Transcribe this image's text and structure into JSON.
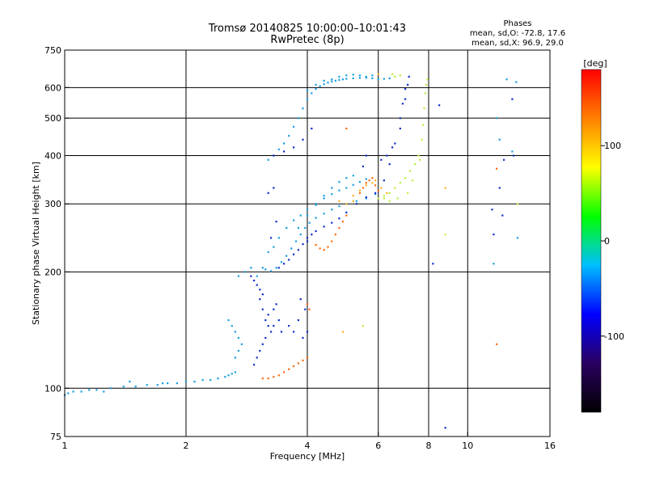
{
  "chart_data": {
    "type": "scatter",
    "title": "Tromsø 20140825 10:00:00–10:01:43",
    "subtitle": "RwPretec (8p)",
    "xlabel": "Frequency [MHz]",
    "ylabel": "Stationary phase Virtual Height [km]",
    "x_scale": "log",
    "y_scale": "log",
    "xlim": [
      1,
      16
    ],
    "ylim": [
      75,
      750
    ],
    "x_ticks": [
      1,
      2,
      4,
      6,
      8,
      10,
      16
    ],
    "y_ticks": [
      75,
      100,
      200,
      300,
      400,
      500,
      600,
      750
    ],
    "grid": true,
    "phase_box": {
      "heading": "Phases",
      "line_o": "mean, sd,O: -72.8, 17.6",
      "line_x": "mean, sd,X:  96.9, 29.0"
    },
    "colorbar": {
      "label": "[deg]",
      "range": [
        -180,
        180
      ],
      "ticks": [
        100,
        0,
        -100
      ],
      "colormap": [
        "#000000",
        "#2a0060",
        "#0000ff",
        "#00bfff",
        "#00ff00",
        "#ffff00",
        "#ff8000",
        "#ff0000"
      ]
    },
    "colors": {
      "cyan_blue": "#1a9fe0",
      "dark_blue": "#1030c8",
      "orange": "#ff6a10",
      "yellow_green": "#b8f040",
      "yellow_orange": "#ffb020"
    },
    "series": [
      {
        "color_key": "cyan_blue",
        "size": 2.2,
        "points": [
          [
            1.0,
            96
          ],
          [
            1.02,
            97
          ],
          [
            1.05,
            98
          ],
          [
            1.1,
            98
          ],
          [
            1.15,
            99
          ],
          [
            1.2,
            99
          ],
          [
            1.3,
            100
          ],
          [
            1.4,
            101
          ],
          [
            1.5,
            101
          ],
          [
            1.6,
            102
          ],
          [
            1.7,
            102
          ],
          [
            1.8,
            103
          ],
          [
            1.9,
            103
          ],
          [
            2.0,
            104
          ],
          [
            2.1,
            104
          ],
          [
            2.2,
            105
          ],
          [
            2.3,
            105
          ],
          [
            2.4,
            106
          ],
          [
            2.5,
            107
          ],
          [
            2.55,
            108
          ],
          [
            2.6,
            109
          ],
          [
            2.65,
            110
          ],
          [
            1.25,
            98
          ],
          [
            1.45,
            104
          ],
          [
            1.75,
            103
          ],
          [
            3.1,
            205
          ],
          [
            3.15,
            203
          ],
          [
            3.25,
            201
          ],
          [
            3.35,
            205
          ],
          [
            3.45,
            212
          ],
          [
            3.55,
            220
          ],
          [
            3.65,
            230
          ],
          [
            3.75,
            240
          ],
          [
            3.85,
            250
          ],
          [
            3.95,
            260
          ],
          [
            4.05,
            268
          ],
          [
            4.2,
            276
          ],
          [
            4.4,
            283
          ],
          [
            4.6,
            290
          ],
          [
            4.8,
            296
          ],
          [
            5.0,
            300
          ],
          [
            5.3,
            305
          ],
          [
            5.6,
            310
          ],
          [
            5.9,
            318
          ],
          [
            3.2,
            225
          ],
          [
            3.3,
            232
          ],
          [
            3.4,
            245
          ],
          [
            3.55,
            260
          ],
          [
            3.7,
            272
          ],
          [
            3.85,
            280
          ],
          [
            4.0,
            290
          ],
          [
            4.2,
            300
          ],
          [
            4.4,
            310
          ],
          [
            4.6,
            318
          ],
          [
            4.8,
            325
          ],
          [
            5.0,
            330
          ],
          [
            5.2,
            336
          ],
          [
            5.4,
            342
          ],
          [
            5.6,
            348
          ],
          [
            3.8,
            260
          ],
          [
            4.0,
            280
          ],
          [
            4.2,
            298
          ],
          [
            4.4,
            315
          ],
          [
            4.6,
            330
          ],
          [
            4.8,
            342
          ],
          [
            5.0,
            350
          ],
          [
            5.2,
            355
          ],
          [
            3.2,
            390
          ],
          [
            3.3,
            400
          ],
          [
            3.4,
            415
          ],
          [
            3.5,
            430
          ],
          [
            3.6,
            450
          ],
          [
            3.7,
            475
          ],
          [
            3.8,
            500
          ],
          [
            3.9,
            530
          ],
          [
            4.0,
            560
          ],
          [
            4.1,
            580
          ],
          [
            4.2,
            595
          ],
          [
            4.3,
            605
          ],
          [
            4.4,
            612
          ],
          [
            4.5,
            618
          ],
          [
            4.6,
            622
          ],
          [
            4.7,
            625
          ],
          [
            4.8,
            628
          ],
          [
            4.9,
            630
          ],
          [
            5.0,
            632
          ],
          [
            5.2,
            634
          ],
          [
            5.4,
            636
          ],
          [
            5.6,
            636
          ],
          [
            5.8,
            634
          ],
          [
            6.0,
            630
          ],
          [
            6.2,
            632
          ],
          [
            6.4,
            634
          ],
          [
            4.0,
            590
          ],
          [
            4.2,
            610
          ],
          [
            4.4,
            625
          ],
          [
            4.6,
            630
          ],
          [
            4.8,
            640
          ],
          [
            5.0,
            645
          ],
          [
            5.2,
            648
          ],
          [
            5.4,
            645
          ],
          [
            5.6,
            640
          ],
          [
            5.8,
            645
          ],
          [
            2.55,
            150
          ],
          [
            2.6,
            145
          ],
          [
            2.65,
            140
          ],
          [
            2.7,
            135
          ],
          [
            2.75,
            130
          ],
          [
            2.7,
            125
          ],
          [
            2.65,
            120
          ],
          [
            2.7,
            195
          ],
          [
            2.8,
            200
          ],
          [
            2.9,
            205
          ],
          [
            3.0,
            195
          ],
          [
            12.5,
            630
          ],
          [
            13.2,
            620
          ],
          [
            12.9,
            410
          ],
          [
            13.3,
            245
          ],
          [
            11.8,
            500
          ],
          [
            12.0,
            440
          ],
          [
            11.6,
            210
          ]
        ]
      },
      {
        "color_key": "dark_blue",
        "size": 2.2,
        "points": [
          [
            2.9,
            195
          ],
          [
            2.95,
            190
          ],
          [
            3.0,
            185
          ],
          [
            3.05,
            180
          ],
          [
            3.1,
            175
          ],
          [
            3.05,
            170
          ],
          [
            3.1,
            160
          ],
          [
            3.15,
            150
          ],
          [
            3.2,
            145
          ],
          [
            3.25,
            140
          ],
          [
            3.15,
            135
          ],
          [
            3.1,
            130
          ],
          [
            3.05,
            125
          ],
          [
            3.0,
            120
          ],
          [
            2.95,
            115
          ],
          [
            3.2,
            155
          ],
          [
            3.3,
            160
          ],
          [
            3.35,
            165
          ],
          [
            3.4,
            150
          ],
          [
            3.3,
            145
          ],
          [
            3.45,
            140
          ],
          [
            3.6,
            145
          ],
          [
            3.8,
            150
          ],
          [
            3.7,
            140
          ],
          [
            3.9,
            135
          ],
          [
            4.0,
            140
          ],
          [
            3.95,
            160
          ],
          [
            3.85,
            170
          ],
          [
            3.4,
            205
          ],
          [
            3.5,
            210
          ],
          [
            3.6,
            215
          ],
          [
            3.7,
            222
          ],
          [
            3.8,
            228
          ],
          [
            3.9,
            236
          ],
          [
            4.0,
            245
          ],
          [
            4.2,
            255
          ],
          [
            4.4,
            262
          ],
          [
            4.6,
            268
          ],
          [
            4.8,
            275
          ],
          [
            5.0,
            285
          ],
          [
            5.3,
            300
          ],
          [
            5.6,
            312
          ],
          [
            5.9,
            320
          ],
          [
            6.2,
            345
          ],
          [
            6.4,
            380
          ],
          [
            6.6,
            430
          ],
          [
            6.8,
            500
          ],
          [
            7.0,
            560
          ],
          [
            7.1,
            610
          ],
          [
            7.15,
            640
          ],
          [
            7.0,
            595
          ],
          [
            6.9,
            545
          ],
          [
            6.8,
            470
          ],
          [
            3.3,
            400
          ],
          [
            3.5,
            410
          ],
          [
            3.7,
            420
          ],
          [
            3.9,
            440
          ],
          [
            4.1,
            470
          ],
          [
            3.3,
            330
          ],
          [
            3.2,
            320
          ],
          [
            3.35,
            270
          ],
          [
            3.25,
            245
          ],
          [
            4.0,
            240
          ],
          [
            4.1,
            250
          ],
          [
            5.6,
            400
          ],
          [
            5.5,
            375
          ],
          [
            6.1,
            390
          ],
          [
            6.3,
            400
          ],
          [
            6.5,
            420
          ],
          [
            12.9,
            560
          ],
          [
            12.3,
            390
          ],
          [
            12.0,
            330
          ],
          [
            11.5,
            290
          ],
          [
            11.6,
            250
          ],
          [
            12.2,
            280
          ],
          [
            13.0,
            400
          ],
          [
            8.8,
            79
          ],
          [
            8.5,
            540
          ],
          [
            8.2,
            210
          ]
        ]
      },
      {
        "color_key": "orange",
        "size": 2.2,
        "points": [
          [
            3.1,
            106
          ],
          [
            3.2,
            106
          ],
          [
            3.3,
            107
          ],
          [
            3.4,
            108
          ],
          [
            3.5,
            110
          ],
          [
            3.6,
            112
          ],
          [
            3.7,
            114
          ],
          [
            3.8,
            116
          ],
          [
            3.9,
            118
          ],
          [
            4.0,
            120
          ],
          [
            4.2,
            235
          ],
          [
            4.3,
            230
          ],
          [
            4.4,
            228
          ],
          [
            4.5,
            232
          ],
          [
            4.6,
            240
          ],
          [
            4.7,
            250
          ],
          [
            4.8,
            260
          ],
          [
            4.9,
            270
          ],
          [
            5.0,
            280
          ],
          [
            5.4,
            320
          ],
          [
            5.5,
            330
          ],
          [
            5.6,
            340
          ],
          [
            5.7,
            345
          ],
          [
            5.8,
            350
          ],
          [
            5.9,
            335
          ],
          [
            6.0,
            325
          ],
          [
            5.0,
            470
          ],
          [
            11.8,
            130
          ],
          [
            11.8,
            370
          ],
          [
            4.0,
            165
          ],
          [
            4.05,
            160
          ]
        ]
      },
      {
        "color_key": "yellow_green",
        "size": 2.2,
        "points": [
          [
            6.0,
            310
          ],
          [
            6.2,
            315
          ],
          [
            6.4,
            320
          ],
          [
            6.6,
            330
          ],
          [
            6.8,
            340
          ],
          [
            7.0,
            350
          ],
          [
            7.2,
            365
          ],
          [
            7.4,
            380
          ],
          [
            7.55,
            400
          ],
          [
            7.7,
            440
          ],
          [
            7.75,
            480
          ],
          [
            7.8,
            530
          ],
          [
            7.85,
            580
          ],
          [
            7.9,
            610
          ],
          [
            7.95,
            630
          ],
          [
            6.2,
            310
          ],
          [
            6.4,
            305
          ],
          [
            6.7,
            310
          ],
          [
            7.1,
            320
          ],
          [
            7.3,
            345
          ],
          [
            7.6,
            390
          ],
          [
            6.5,
            650
          ],
          [
            6.6,
            640
          ],
          [
            6.8,
            645
          ],
          [
            5.5,
            145
          ],
          [
            8.8,
            250
          ],
          [
            13.3,
            300
          ]
        ]
      },
      {
        "color_key": "yellow_orange",
        "size": 2.2,
        "points": [
          [
            5.2,
            315
          ],
          [
            5.4,
            325
          ],
          [
            5.6,
            335
          ],
          [
            5.8,
            340
          ],
          [
            5.9,
            345
          ],
          [
            6.1,
            330
          ],
          [
            6.3,
            320
          ],
          [
            5.0,
            300
          ],
          [
            5.2,
            305
          ],
          [
            4.8,
            305
          ],
          [
            6.0,
            650
          ],
          [
            8.8,
            330
          ],
          [
            4.9,
            140
          ]
        ]
      }
    ]
  }
}
